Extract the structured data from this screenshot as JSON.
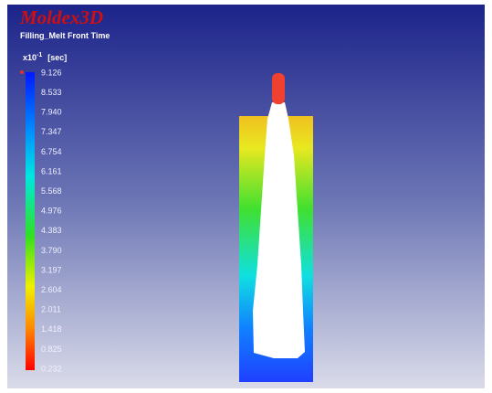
{
  "header": {
    "brand": "Moldex3D",
    "result": "Filling_Melt Front Time"
  },
  "scale": {
    "multiplier": "x10",
    "exponent": "-1",
    "unit": "[sec]",
    "labels": [
      "9.126",
      "8.533",
      "7.940",
      "7.347",
      "6.754",
      "6.161",
      "5.568",
      "4.976",
      "4.383",
      "3.790",
      "3.197",
      "2.604",
      "2.011",
      "1.418",
      "0.825",
      "0.232"
    ]
  }
}
